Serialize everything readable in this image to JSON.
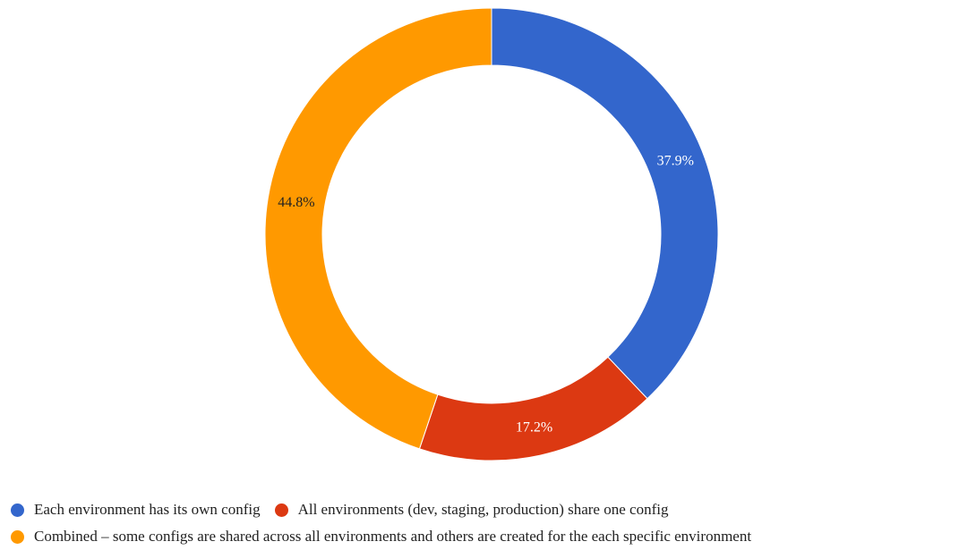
{
  "chart_data": {
    "type": "pie",
    "title": "",
    "donut": true,
    "legend_position": "bottom",
    "slices": [
      {
        "label": "Each environment has its own config",
        "value": 37.9,
        "display": "37.9%",
        "color": "#3366cc",
        "label_color": "#ffffff"
      },
      {
        "label": "All environments (dev, staging, production) share one config",
        "value": 17.2,
        "display": "17.2%",
        "color": "#dc3912",
        "label_color": "#ffffff"
      },
      {
        "label": "Combined – some configs are shared across all environments and others are created for the each specific environment",
        "value": 44.8,
        "display": "44.8%",
        "color": "#ff9900",
        "label_color": "#222222"
      }
    ]
  }
}
